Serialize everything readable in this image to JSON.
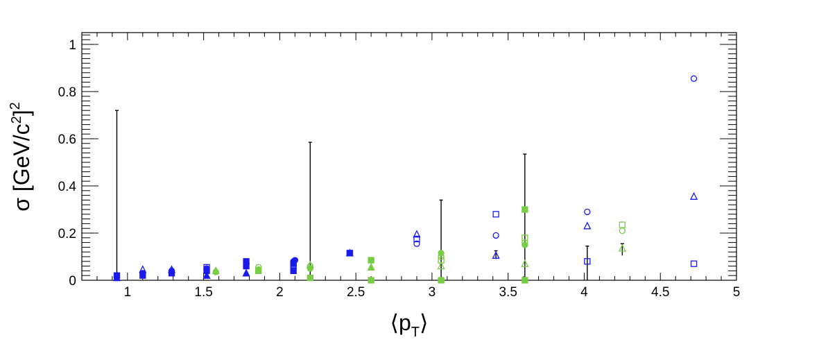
{
  "chart_data": {
    "type": "scatter",
    "title": "",
    "xlabel": "⟨p",
    "xlabel_sub": "T",
    "xlabel_close": "⟩",
    "ylabel": "σ [GeV/c",
    "ylabel_sup": "2",
    "ylabel_close": "]",
    "ylabel_sup2": "2",
    "xlim": [
      0.7,
      5.0
    ],
    "ylim": [
      0,
      1.05
    ],
    "x_ticks": [
      "1",
      "1.5",
      "2",
      "2.5",
      "3",
      "3.5",
      "4",
      "4.5",
      "5"
    ],
    "y_ticks": [
      "0",
      "0.2",
      "0.4",
      "0.6",
      "0.8",
      "1"
    ],
    "grid": false,
    "colors": {
      "blue": "#1a1aee",
      "green": "#77cc44",
      "black": "#000000"
    },
    "series": [
      {
        "color": "#1a1aee",
        "marker": "square-filled",
        "points": [
          [
            0.93,
            0.02
          ],
          [
            1.1,
            0.02
          ],
          [
            1.29,
            0.03
          ],
          [
            1.52,
            0.04
          ],
          [
            1.78,
            0.06
          ],
          [
            1.78,
            0.08
          ],
          [
            2.09,
            0.04
          ],
          [
            2.09,
            0.07
          ],
          [
            2.46,
            0.115
          ]
        ]
      },
      {
        "color": "#1a1aee",
        "marker": "circle-filled",
        "points": [
          [
            1.1,
            0.03
          ],
          [
            1.29,
            0.04
          ],
          [
            1.52,
            0.05
          ],
          [
            1.78,
            0.07
          ],
          [
            2.09,
            0.08
          ],
          [
            2.1,
            0.085
          ]
        ]
      },
      {
        "color": "#1a1aee",
        "marker": "triangle-filled",
        "points": [
          [
            0.93,
            0.01
          ],
          [
            1.52,
            0.02
          ],
          [
            1.78,
            0.03
          ]
        ]
      },
      {
        "color": "#1a1aee",
        "marker": "triangle-open",
        "points": [
          [
            1.1,
            0.045
          ],
          [
            1.29,
            0.045
          ],
          [
            2.46,
            0.115
          ],
          [
            2.9,
            0.195
          ],
          [
            3.42,
            0.105
          ],
          [
            4.02,
            0.23
          ],
          [
            4.72,
            0.355
          ]
        ]
      },
      {
        "color": "#1a1aee",
        "marker": "circle-open",
        "points": [
          [
            2.9,
            0.155
          ],
          [
            3.42,
            0.19
          ],
          [
            4.02,
            0.29
          ],
          [
            4.72,
            0.855
          ]
        ]
      },
      {
        "color": "#1a1aee",
        "marker": "square-open",
        "points": [
          [
            1.52,
            0.055
          ],
          [
            2.09,
            0.065
          ],
          [
            2.46,
            0.115
          ],
          [
            2.9,
            0.175
          ],
          [
            3.42,
            0.28
          ],
          [
            4.02,
            0.08
          ],
          [
            4.72,
            0.07
          ]
        ]
      },
      {
        "color": "#77cc44",
        "marker": "square-filled",
        "points": [
          [
            1.86,
            0.04
          ],
          [
            2.2,
            0.01
          ],
          [
            2.6,
            0.0
          ],
          [
            2.6,
            0.085
          ],
          [
            3.06,
            0.0
          ],
          [
            3.61,
            0.0
          ],
          [
            3.61,
            0.3
          ]
        ]
      },
      {
        "color": "#77cc44",
        "marker": "circle-filled",
        "points": [
          [
            1.58,
            0.035
          ],
          [
            1.86,
            0.045
          ],
          [
            2.2,
            0.05
          ],
          [
            2.6,
            0.085
          ],
          [
            3.06,
            0.115
          ],
          [
            3.61,
            0.15
          ]
        ]
      },
      {
        "color": "#77cc44",
        "marker": "triangle-filled",
        "points": [
          [
            1.58,
            0.04
          ],
          [
            2.6,
            0.055
          ]
        ]
      },
      {
        "color": "#77cc44",
        "marker": "triangle-open",
        "points": [
          [
            2.2,
            0.065
          ],
          [
            3.06,
            0.06
          ],
          [
            3.61,
            0.07
          ],
          [
            4.25,
            0.135
          ]
        ]
      },
      {
        "color": "#77cc44",
        "marker": "circle-open",
        "points": [
          [
            1.86,
            0.055
          ],
          [
            2.2,
            0.06
          ],
          [
            3.06,
            0.1
          ],
          [
            3.61,
            0.16
          ],
          [
            4.25,
            0.21
          ]
        ]
      },
      {
        "color": "#77cc44",
        "marker": "square-open",
        "points": [
          [
            3.06,
            0.085
          ],
          [
            3.61,
            0.18
          ],
          [
            4.25,
            0.235
          ]
        ]
      }
    ],
    "error_bars": [
      {
        "x": 0.93,
        "low": 0.0,
        "high": 0.72
      },
      {
        "x": 2.2,
        "low": 0.0,
        "high": 0.585
      },
      {
        "x": 3.06,
        "low": 0.0,
        "high": 0.34
      },
      {
        "x": 3.61,
        "low": 0.0,
        "high": 0.535
      },
      {
        "x": 4.02,
        "low": 0.0,
        "high": 0.145
      },
      {
        "x": 3.42,
        "low": 0.09,
        "high": 0.125
      },
      {
        "x": 4.25,
        "low": 0.105,
        "high": 0.155
      }
    ]
  }
}
